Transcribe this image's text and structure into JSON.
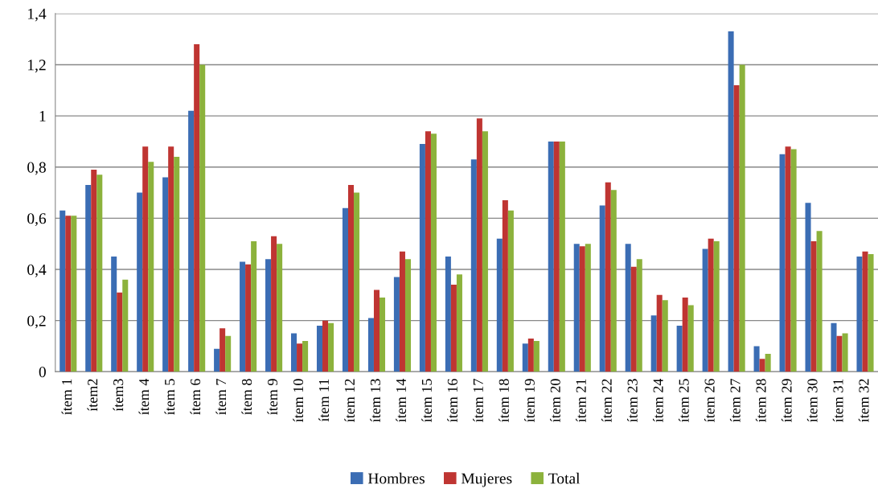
{
  "chart_data": {
    "type": "bar",
    "categories": [
      "ítem 1",
      "ítem2",
      "ítem3",
      "ítem 4",
      "ítem 5",
      "ítem 6",
      "ítem 7",
      "ítem 8",
      "ítem 9",
      "ítem 10",
      "ítem 11",
      "ítem 12",
      "ítem 13",
      "ítem 14",
      "ítem 15",
      "ítem 16",
      "ítem 17",
      "ítem 18",
      "ítem 19",
      "ítem 20",
      "ítem 21",
      "ítem 22",
      "ítem 23",
      "ítem 24",
      "ítem 25",
      "ítem 26",
      "ítem 27",
      "ítem 28",
      "ítem 29",
      "ítem 30",
      "ítem 31",
      "ítem 32"
    ],
    "series": [
      {
        "name": "Hombres",
        "color": "#3b6db4",
        "values": [
          0.63,
          0.73,
          0.45,
          0.7,
          0.76,
          1.02,
          0.09,
          0.43,
          0.44,
          0.15,
          0.18,
          0.64,
          0.21,
          0.37,
          0.89,
          0.45,
          0.83,
          0.52,
          0.11,
          0.9,
          0.5,
          0.65,
          0.5,
          0.22,
          0.18,
          0.48,
          1.33,
          0.1,
          0.85,
          0.66,
          0.19,
          0.45
        ]
      },
      {
        "name": "Mujeres",
        "color": "#bf3532",
        "values": [
          0.61,
          0.79,
          0.31,
          0.88,
          0.88,
          1.28,
          0.17,
          0.42,
          0.53,
          0.11,
          0.2,
          0.73,
          0.32,
          0.47,
          0.94,
          0.34,
          0.99,
          0.67,
          0.13,
          0.9,
          0.49,
          0.74,
          0.41,
          0.3,
          0.29,
          0.52,
          1.12,
          0.05,
          0.88,
          0.51,
          0.14,
          0.47
        ]
      },
      {
        "name": "Total",
        "color": "#8cb23c",
        "values": [
          0.61,
          0.77,
          0.36,
          0.82,
          0.84,
          1.2,
          0.14,
          0.51,
          0.5,
          0.12,
          0.19,
          0.7,
          0.29,
          0.44,
          0.93,
          0.38,
          0.94,
          0.63,
          0.12,
          0.9,
          0.5,
          0.71,
          0.44,
          0.28,
          0.26,
          0.51,
          1.2,
          0.07,
          0.87,
          0.55,
          0.15,
          0.46
        ]
      }
    ],
    "ylim": [
      0,
      1.4
    ],
    "yticks": [
      0,
      {
        "value": 0.2,
        "label": "0,2"
      },
      {
        "value": 0.4,
        "label": "0,4"
      },
      {
        "value": 0.6,
        "label": "0,6"
      },
      {
        "value": 0.8,
        "label": "0,8"
      },
      1,
      {
        "value": 1.2,
        "label": "1,2"
      },
      {
        "value": 1.4,
        "label": "1,4"
      }
    ],
    "grid": "y",
    "legend": "bottom"
  }
}
